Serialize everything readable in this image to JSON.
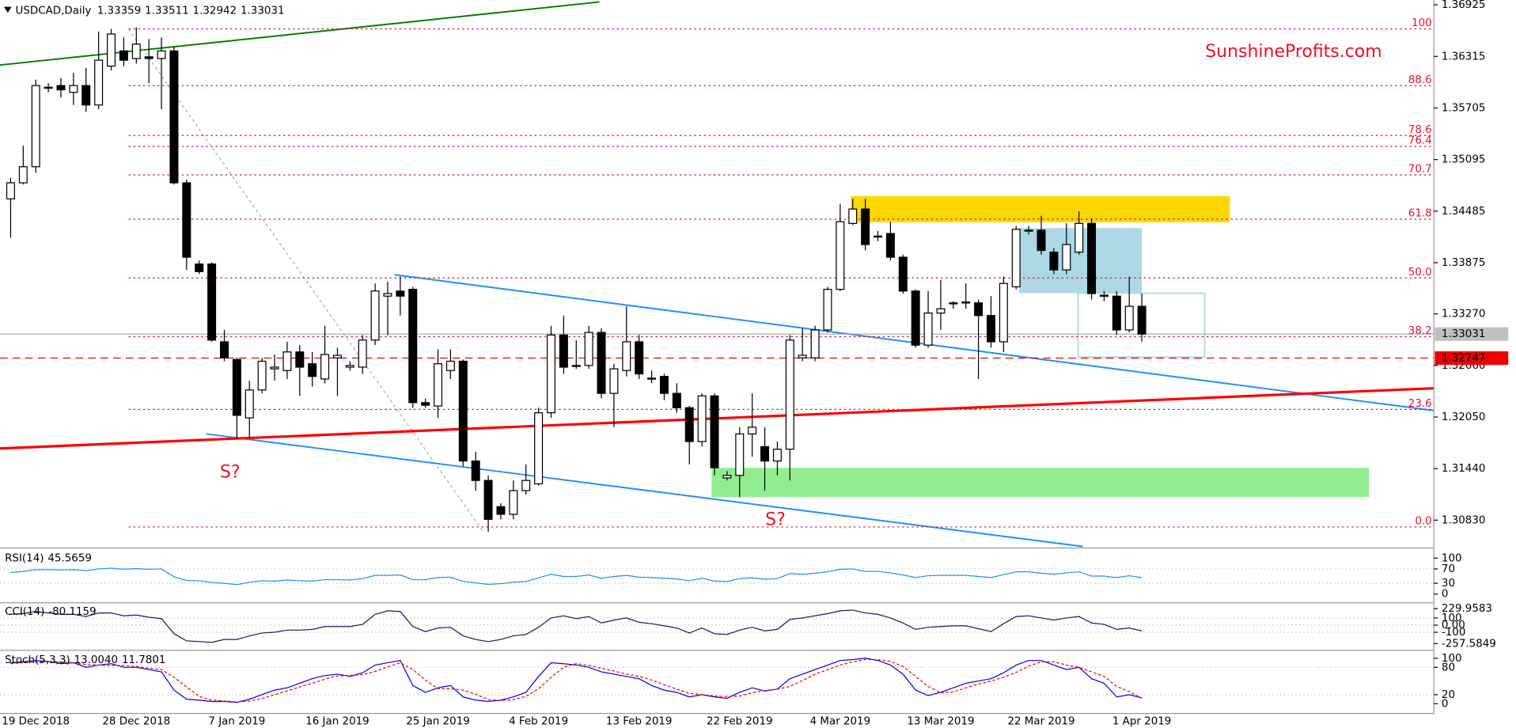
{
  "chart_data": {
    "type": "candlestick",
    "title": "USDCAD,Daily",
    "categories": [
      null,
      null,
      "19 Dec 2018",
      null,
      null,
      null,
      null,
      null,
      null,
      null,
      "28 Dec 2018",
      null,
      null,
      null,
      null,
      null,
      null,
      null,
      "7 Jan 2019",
      null,
      null,
      null,
      null,
      null,
      null,
      null,
      "16 Jan 2019",
      null,
      null,
      null,
      null,
      null,
      null,
      null,
      "25 Jan 2019",
      null,
      null,
      null,
      null,
      null,
      null,
      null,
      "4 Feb 2019",
      null,
      null,
      null,
      null,
      null,
      null,
      null,
      "13 Feb 2019",
      null,
      null,
      null,
      null,
      null,
      null,
      null,
      "22 Feb 2019",
      null,
      null,
      null,
      null,
      null,
      null,
      null,
      "4 Mar 2019",
      null,
      null,
      null,
      null,
      null,
      null,
      null,
      "13 Mar 2019",
      null,
      null,
      null,
      null,
      null,
      null,
      null,
      "22 Mar 2019",
      null,
      null,
      null,
      null,
      null,
      null,
      null,
      "1 Apr 2019"
    ],
    "ohlc": [
      [
        1.3463,
        1.3488,
        1.3417,
        1.3482
      ],
      [
        1.3482,
        1.3526,
        1.348,
        1.3501
      ],
      [
        1.3501,
        1.3604,
        1.3494,
        1.3597
      ],
      [
        1.3595,
        1.36,
        1.3589,
        1.3594
      ],
      [
        1.3597,
        1.3606,
        1.3583,
        1.3592
      ],
      [
        1.3589,
        1.3612,
        1.3574,
        1.3597
      ],
      [
        1.3597,
        1.3618,
        1.3566,
        1.3574
      ],
      [
        1.3574,
        1.3661,
        1.3569,
        1.3627
      ],
      [
        1.362,
        1.3664,
        1.3615,
        1.3658
      ],
      [
        1.3638,
        1.3654,
        1.362,
        1.3627
      ],
      [
        1.3629,
        1.3666,
        1.3623,
        1.3646
      ],
      [
        1.3631,
        1.3652,
        1.36,
        1.3629
      ],
      [
        1.3629,
        1.3654,
        1.3569,
        1.3638
      ],
      [
        1.3638,
        1.3643,
        1.348,
        1.3482
      ],
      [
        1.3482,
        1.3486,
        1.3379,
        1.3394
      ],
      [
        1.3386,
        1.339,
        1.3374,
        1.3377
      ],
      [
        1.3386,
        1.3388,
        1.3294,
        1.3296
      ],
      [
        1.3294,
        1.3308,
        1.3271,
        1.3275
      ],
      [
        1.3273,
        1.3275,
        1.3179,
        1.3207
      ],
      [
        1.3204,
        1.3248,
        1.3181,
        1.3237
      ],
      [
        1.3237,
        1.3275,
        1.3233,
        1.3271
      ],
      [
        1.3262,
        1.3279,
        1.3248,
        1.3264
      ],
      [
        1.326,
        1.3294,
        1.325,
        1.3282
      ],
      [
        1.3282,
        1.329,
        1.323,
        1.3264
      ],
      [
        1.3268,
        1.3282,
        1.3241,
        1.3253
      ],
      [
        1.325,
        1.3313,
        1.3245,
        1.3279
      ],
      [
        1.3275,
        1.3287,
        1.323,
        1.3278
      ],
      [
        1.3264,
        1.3271,
        1.326,
        1.3266
      ],
      [
        1.3264,
        1.3302,
        1.3256,
        1.3296
      ],
      [
        1.3296,
        1.3363,
        1.329,
        1.3354
      ],
      [
        1.3348,
        1.3365,
        1.3302,
        1.3351
      ],
      [
        1.3354,
        1.3371,
        1.3325,
        1.3348
      ],
      [
        1.3356,
        1.3359,
        1.3216,
        1.3222
      ],
      [
        1.3222,
        1.3227,
        1.3216,
        1.3219
      ],
      [
        1.3218,
        1.3285,
        1.3204,
        1.3268
      ],
      [
        1.326,
        1.3285,
        1.325,
        1.3271
      ],
      [
        1.3271,
        1.3273,
        1.3147,
        1.3153
      ],
      [
        1.3153,
        1.3164,
        1.3118,
        1.313
      ],
      [
        1.313,
        1.3136,
        1.3069,
        1.3084
      ],
      [
        1.3099,
        1.3103,
        1.3084,
        1.309
      ],
      [
        1.309,
        1.313,
        1.3084,
        1.3118
      ],
      [
        1.3118,
        1.3149,
        1.3113,
        1.313
      ],
      [
        1.3126,
        1.3216,
        1.3124,
        1.321
      ],
      [
        1.321,
        1.3313,
        1.3204,
        1.3302
      ],
      [
        1.3302,
        1.3325,
        1.3256,
        1.3264
      ],
      [
        1.3266,
        1.3296,
        1.3262,
        1.3265
      ],
      [
        1.3266,
        1.3313,
        1.3262,
        1.3305
      ],
      [
        1.3305,
        1.331,
        1.3227,
        1.3233
      ],
      [
        1.3233,
        1.3268,
        1.3193,
        1.3262
      ],
      [
        1.326,
        1.3336,
        1.3253,
        1.3294
      ],
      [
        1.3294,
        1.3302,
        1.325,
        1.3256
      ],
      [
        1.325,
        1.326,
        1.3245,
        1.3251
      ],
      [
        1.3253,
        1.3256,
        1.3225,
        1.3233
      ],
      [
        1.3233,
        1.3245,
        1.321,
        1.3216
      ],
      [
        1.3216,
        1.3218,
        1.3149,
        1.3176
      ],
      [
        1.3176,
        1.3233,
        1.317,
        1.323
      ],
      [
        1.323,
        1.3233,
        1.3136,
        1.3145
      ],
      [
        1.3133,
        1.3141,
        1.313,
        1.3136
      ],
      [
        1.3136,
        1.3193,
        1.311,
        1.3185
      ],
      [
        1.3185,
        1.3233,
        1.3158,
        1.3193
      ],
      [
        1.317,
        1.3193,
        1.3118,
        1.3153
      ],
      [
        1.3153,
        1.3176,
        1.3136,
        1.3167
      ],
      [
        1.3167,
        1.3302,
        1.313,
        1.3296
      ],
      [
        1.3275,
        1.331,
        1.3271,
        1.3278
      ],
      [
        1.3275,
        1.3313,
        1.3271,
        1.3308
      ],
      [
        1.3308,
        1.3359,
        1.3305,
        1.3356
      ],
      [
        1.3356,
        1.3457,
        1.3354,
        1.3436
      ],
      [
        1.3434,
        1.3463,
        1.3432,
        1.3451
      ],
      [
        1.3451,
        1.3463,
        1.3402,
        1.3409
      ],
      [
        1.3419,
        1.3425,
        1.3413,
        1.3418
      ],
      [
        1.3422,
        1.3436,
        1.339,
        1.3394
      ],
      [
        1.3394,
        1.3397,
        1.3351,
        1.3354
      ],
      [
        1.3354,
        1.3356,
        1.3287,
        1.329
      ],
      [
        1.329,
        1.3354,
        1.3287,
        1.3328
      ],
      [
        1.3328,
        1.3367,
        1.3308,
        1.3333
      ],
      [
        1.3339,
        1.3342,
        1.3333,
        1.334
      ],
      [
        1.334,
        1.3363,
        1.3333,
        1.3341
      ],
      [
        1.334,
        1.3344,
        1.325,
        1.3325
      ],
      [
        1.3325,
        1.3348,
        1.3287,
        1.3294
      ],
      [
        1.3294,
        1.3371,
        1.3282,
        1.3363
      ],
      [
        1.3359,
        1.3431,
        1.3356,
        1.3427
      ],
      [
        1.3426,
        1.3431,
        1.3421,
        1.3425
      ],
      [
        1.3426,
        1.3443,
        1.3397,
        1.3402
      ],
      [
        1.34,
        1.3405,
        1.3374,
        1.3379
      ],
      [
        1.3379,
        1.3434,
        1.3374,
        1.3409
      ],
      [
        1.34,
        1.3448,
        1.3397,
        1.3434
      ],
      [
        1.3434,
        1.344,
        1.3344,
        1.3351
      ],
      [
        1.3349,
        1.3354,
        1.3342,
        1.3348
      ],
      [
        1.3348,
        1.3354,
        1.3302,
        1.3308
      ],
      [
        1.3308,
        1.3371,
        1.3305,
        1.3336
      ],
      [
        1.33359,
        1.33511,
        1.32942,
        1.33031
      ]
    ],
    "ylim": [
      1.30519,
      1.36982
    ],
    "yticks": [
      1.36925,
      1.36315,
      1.35705,
      1.35095,
      1.34485,
      1.33875,
      {
        "value": 1.3327,
        "label": "1.33270"
      },
      {
        "value": 1.3266,
        "label": "1.32660"
      },
      {
        "value": 1.3205,
        "label": "1.32050"
      },
      {
        "value": 1.3144,
        "label": "1.31440"
      },
      {
        "value": 1.3083,
        "label": "1.30830"
      }
    ],
    "support_level": 1.32747,
    "fibonacci": {
      "high": 1.3664,
      "low": 1.3075,
      "levels": [
        100,
        88.6,
        78.6,
        76.4,
        70.7,
        61.8,
        {
          "value": 50,
          "label": "50.0"
        },
        38.2,
        23.6,
        {
          "value": 0,
          "label": "0.0"
        }
      ]
    },
    "annotations": [
      "S?",
      "S?",
      "SunshineProfits.com"
    ],
    "indicators": [
      {
        "name": "RSI(14)",
        "color": "#1e90ff",
        "ylim": [
          -21.6,
          121.6
        ],
        "yticks": [
          100,
          70,
          30,
          0
        ],
        "values": [
          60,
          63,
          68,
          68,
          67,
          68,
          65,
          70,
          72,
          69,
          71,
          69,
          70,
          48,
          38,
          37,
          32,
          30,
          26,
          33,
          37,
          36,
          39,
          37,
          36,
          40,
          40,
          39,
          43,
          52,
          52,
          53,
          40,
          40,
          46,
          47,
          35,
          31,
          27,
          29,
          33,
          35,
          45,
          55,
          49,
          49,
          53,
          44,
          49,
          52,
          47,
          46,
          44,
          42,
          37,
          44,
          36,
          35,
          43,
          45,
          41,
          43,
          57,
          55,
          58,
          62,
          69,
          70,
          63,
          63,
          59,
          53,
          46,
          51,
          52,
          52,
          52,
          49,
          46,
          54,
          62,
          62,
          58,
          55,
          59,
          62,
          50,
          50,
          46,
          51,
          45.5659
        ]
      },
      {
        "name": "CCI(14)",
        "color": "#191970",
        "ylim": [
          -325,
          298
        ],
        "yticks": [
          229.9583,
          100,
          {
            "value": 0,
            "label": "0.00"
          },
          -100,
          -257.5849
        ],
        "values": [
          150,
          160,
          190,
          170,
          150,
          150,
          120,
          170,
          170,
          130,
          140,
          110,
          90,
          -120,
          -220,
          -230,
          -240,
          -200,
          -200,
          -150,
          -110,
          -100,
          -70,
          -70,
          -60,
          -20,
          -20,
          -20,
          10,
          150,
          200,
          190,
          -20,
          -90,
          -40,
          -30,
          -150,
          -200,
          -230,
          -200,
          -150,
          -130,
          -30,
          100,
          130,
          90,
          120,
          30,
          70,
          100,
          40,
          20,
          -10,
          -40,
          -110,
          -40,
          -120,
          -130,
          -70,
          -30,
          -80,
          -60,
          80,
          100,
          130,
          160,
          200,
          210,
          170,
          150,
          100,
          30,
          -60,
          -30,
          -20,
          -10,
          -10,
          -50,
          -90,
          20,
          120,
          130,
          100,
          70,
          100,
          120,
          30,
          10,
          -60,
          -40,
          -80.1159
        ]
      },
      {
        "name": "Stoch(5,3,3)",
        "ylim": [
          -17,
          113
        ],
        "yticks": [
          100,
          80,
          20,
          0
        ],
        "series": [
          {
            "color": "#0000ff",
            "last_label": "13.0040",
            "values": [
              90,
              92,
              95,
              93,
              88,
              90,
              80,
              85,
              88,
              80,
              80,
              75,
              70,
              30,
              10,
              8,
              5,
              5,
              3,
              10,
              20,
              30,
              35,
              45,
              55,
              62,
              65,
              60,
              68,
              85,
              90,
              95,
              40,
              25,
              35,
              40,
              15,
              8,
              5,
              8,
              15,
              25,
              60,
              90,
              88,
              85,
              80,
              70,
              65,
              60,
              55,
              40,
              30,
              25,
              15,
              20,
              15,
              12,
              25,
              35,
              28,
              32,
              55,
              65,
              75,
              85,
              95,
              97,
              100,
              95,
              85,
              65,
              30,
              18,
              25,
              35,
              45,
              50,
              55,
              68,
              85,
              95,
              95,
              85,
              75,
              80,
              55,
              45,
              15,
              20,
              13.004
            ]
          },
          {
            "color": "#ff0000",
            "dashed": true,
            "values": [
              88,
              90,
              92,
              93,
              92,
              90,
              86,
              85,
              84,
              84,
              82,
              78,
              75,
              58,
              37,
              16,
              8,
              6,
              4,
              6,
              11,
              20,
              28,
              37,
              45,
              54,
              61,
              62,
              64,
              71,
              81,
              90,
              75,
              52,
              33,
              33,
              30,
              21,
              9,
              7,
              9,
              16,
              33,
              58,
              80,
              88,
              84,
              78,
              72,
              65,
              60,
              52,
              42,
              32,
              23,
              20,
              17,
              16,
              17,
              24,
              29,
              32,
              38,
              51,
              65,
              75,
              85,
              92,
              97,
              97,
              93,
              82,
              60,
              38,
              24,
              26,
              35,
              43,
              50,
              58,
              69,
              83,
              92,
              92,
              85,
              80,
              70,
              60,
              38,
              27,
              11.7801
            ]
          }
        ]
      }
    ]
  }
}
